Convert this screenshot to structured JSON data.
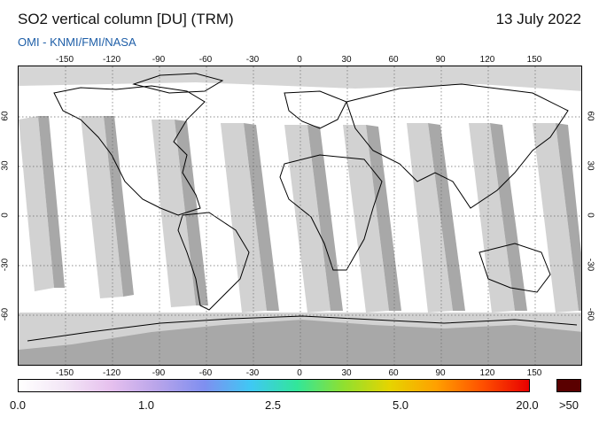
{
  "header": {
    "title": "SO2 vertical column [DU] (TRM)",
    "date": "13 July 2022",
    "credit": "OMI  -  KNMI/FMI/NASA"
  },
  "map": {
    "lon_ticks": [
      "-150",
      "-120",
      "-90",
      "-60",
      "-30",
      "0",
      "30",
      "60",
      "90",
      "120",
      "150"
    ],
    "lat_ticks": [
      "60",
      "30",
      "0",
      "-30",
      "-60"
    ],
    "lon_range": [
      -180,
      180
    ],
    "lat_range": [
      -90,
      90
    ],
    "grid": true,
    "colors": {
      "ocean": "#ffffff",
      "coverage_gap": "#d2d2d2",
      "orbit_overlap": "#a8a8a8",
      "coastline": "#000000",
      "gridline": "#6a6a6a"
    }
  },
  "colorbar": {
    "labels": [
      "0.0",
      "1.0",
      "2.5",
      "5.0",
      "20.0"
    ],
    "overflow_label": ">50",
    "overflow_color": "#5a0000",
    "gradient_stops": [
      "#ffffff",
      "#f3e6f6",
      "#e6c0ee",
      "#b8a4ea",
      "#7f8ff0",
      "#3fc8f4",
      "#32e69a",
      "#8fe030",
      "#e6d400",
      "#ffa000",
      "#ff5000",
      "#e80000"
    ]
  }
}
